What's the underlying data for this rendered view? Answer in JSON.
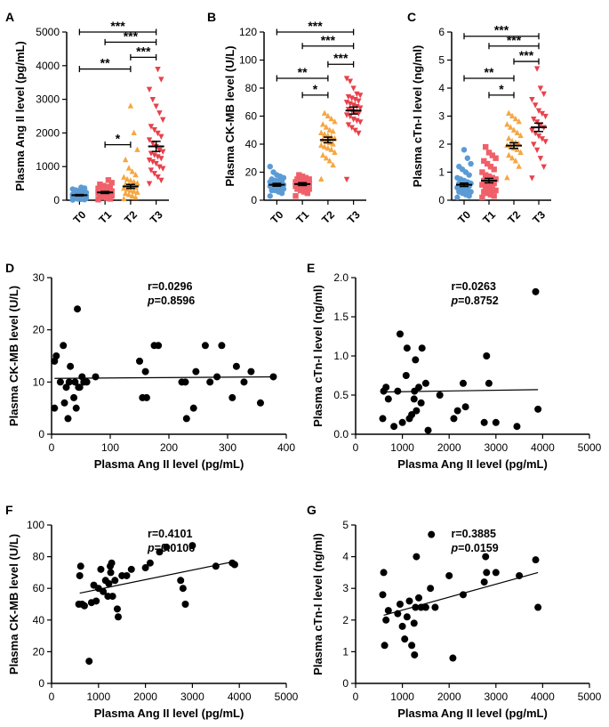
{
  "chart_data": [
    {
      "panel": "A",
      "type": "scatter",
      "ylabel": "Plasma Ang II level (pg/mL)",
      "ylim": [
        0,
        5000
      ],
      "yticks": [
        0,
        1000,
        2000,
        3000,
        4000,
        5000
      ],
      "categories": [
        "T0",
        "T1",
        "T2",
        "T3"
      ],
      "colors": [
        "#5b9bd5",
        "#f0606a",
        "#f5a742",
        "#e8414b"
      ],
      "markers": [
        "circle",
        "square",
        "triangle-up",
        "triangle-down"
      ],
      "means": [
        150,
        230,
        410,
        1600
      ],
      "sems": [
        20,
        30,
        60,
        150
      ],
      "groups": [
        [
          10,
          20,
          30,
          40,
          50,
          60,
          70,
          80,
          90,
          100,
          100,
          110,
          120,
          130,
          140,
          150,
          150,
          160,
          170,
          180,
          190,
          200,
          210,
          230,
          250,
          270,
          300,
          330,
          360,
          380
        ],
        [
          20,
          40,
          70,
          90,
          110,
          130,
          150,
          160,
          180,
          200,
          210,
          220,
          240,
          250,
          270,
          290,
          310,
          330,
          350,
          380,
          400,
          430,
          470,
          520,
          600
        ],
        [
          40,
          80,
          120,
          160,
          200,
          230,
          260,
          290,
          320,
          350,
          380,
          410,
          440,
          470,
          500,
          540,
          580,
          620,
          680,
          750,
          850,
          950,
          1200,
          1500,
          2000,
          2800
        ],
        [
          500,
          600,
          700,
          800,
          900,
          950,
          1000,
          1100,
          1150,
          1200,
          1250,
          1300,
          1350,
          1400,
          1450,
          1500,
          1600,
          1700,
          1800,
          1900,
          2000,
          2100,
          2200,
          2400,
          2600,
          2800,
          3000,
          3300,
          3600,
          3900
        ]
      ],
      "significance": [
        {
          "from": 0,
          "to": 3,
          "label": "***",
          "y": 5000
        },
        {
          "from": 1,
          "to": 3,
          "label": "***",
          "y": 4700
        },
        {
          "from": 2,
          "to": 3,
          "label": "***",
          "y": 4250
        },
        {
          "from": 0,
          "to": 2,
          "label": "**",
          "y": 3900
        },
        {
          "from": 1,
          "to": 2,
          "label": "*",
          "y": 1650
        }
      ]
    },
    {
      "panel": "B",
      "type": "scatter",
      "ylabel": "Plasma CK-MB level (U/L)",
      "ylim": [
        0,
        120
      ],
      "yticks": [
        0,
        20,
        40,
        60,
        80,
        100,
        120
      ],
      "categories": [
        "T0",
        "T1",
        "T2",
        "T3"
      ],
      "colors": [
        "#5b9bd5",
        "#f0606a",
        "#f5a742",
        "#e8414b"
      ],
      "markers": [
        "circle",
        "square",
        "triangle-up",
        "triangle-down"
      ],
      "means": [
        11,
        11.5,
        43,
        64
      ],
      "sems": [
        1,
        1,
        2,
        2.5
      ],
      "groups": [
        [
          3,
          5,
          6,
          7,
          7,
          8,
          8,
          9,
          9,
          10,
          10,
          10,
          11,
          11,
          11,
          12,
          12,
          12,
          13,
          13,
          14,
          14,
          15,
          16,
          17,
          18,
          20,
          24
        ],
        [
          3,
          5,
          6,
          7,
          8,
          8,
          9,
          9,
          10,
          10,
          10,
          11,
          11,
          11,
          12,
          12,
          12,
          13,
          13,
          13,
          14,
          14,
          15,
          15,
          16,
          17,
          18
        ],
        [
          15,
          25,
          28,
          30,
          32,
          34,
          36,
          37,
          38,
          39,
          40,
          41,
          42,
          43,
          44,
          45,
          46,
          47,
          48,
          49,
          50,
          52,
          54,
          56,
          58,
          60,
          62
        ],
        [
          15,
          48,
          50,
          52,
          54,
          56,
          57,
          58,
          60,
          61,
          62,
          63,
          64,
          65,
          66,
          67,
          68,
          69,
          70,
          71,
          72,
          73,
          74,
          75,
          76,
          80,
          85,
          87
        ]
      ],
      "significance": [
        {
          "from": 0,
          "to": 3,
          "label": "***",
          "y": 120
        },
        {
          "from": 1,
          "to": 3,
          "label": "***",
          "y": 110
        },
        {
          "from": 2,
          "to": 3,
          "label": "***",
          "y": 97
        },
        {
          "from": 0,
          "to": 2,
          "label": "**",
          "y": 87
        },
        {
          "from": 1,
          "to": 2,
          "label": "*",
          "y": 75
        }
      ]
    },
    {
      "panel": "C",
      "type": "scatter",
      "ylabel": "Plasma cTn-I level (ng/ml)",
      "ylim": [
        0,
        6
      ],
      "yticks": [
        0,
        1,
        2,
        3,
        4,
        5,
        6
      ],
      "categories": [
        "T0",
        "T1",
        "T2",
        "T3"
      ],
      "colors": [
        "#5b9bd5",
        "#f0606a",
        "#f5a742",
        "#e8414b"
      ],
      "markers": [
        "circle",
        "square",
        "triangle-up",
        "triangle-down"
      ],
      "means": [
        0.55,
        0.7,
        1.95,
        2.6
      ],
      "sems": [
        0.06,
        0.08,
        0.1,
        0.15
      ],
      "groups": [
        [
          0.1,
          0.15,
          0.2,
          0.25,
          0.3,
          0.3,
          0.35,
          0.4,
          0.4,
          0.45,
          0.5,
          0.5,
          0.55,
          0.6,
          0.6,
          0.65,
          0.7,
          0.75,
          0.8,
          0.9,
          1.0,
          1.1,
          1.2,
          1.3,
          1.5,
          1.8
        ],
        [
          0.1,
          0.15,
          0.2,
          0.25,
          0.3,
          0.35,
          0.4,
          0.45,
          0.5,
          0.55,
          0.6,
          0.6,
          0.65,
          0.7,
          0.75,
          0.8,
          0.85,
          0.9,
          1.0,
          1.1,
          1.2,
          1.3,
          1.4,
          1.5,
          1.6,
          1.7,
          1.9
        ],
        [
          0.8,
          1.2,
          1.4,
          1.5,
          1.6,
          1.7,
          1.8,
          1.85,
          1.9,
          1.95,
          2.0,
          2.05,
          2.1,
          2.2,
          2.3,
          2.4,
          2.5,
          2.6,
          2.7,
          2.8,
          2.9,
          3.0,
          3.1
        ],
        [
          0.8,
          1.2,
          1.5,
          1.8,
          2.0,
          2.1,
          2.2,
          2.3,
          2.4,
          2.5,
          2.6,
          2.7,
          2.8,
          2.9,
          3.0,
          3.1,
          3.2,
          3.4,
          3.6,
          3.8,
          4.0,
          4.7
        ]
      ],
      "significance": [
        {
          "from": 0,
          "to": 3,
          "label": "***",
          "y": 5.85
        },
        {
          "from": 1,
          "to": 3,
          "label": "***",
          "y": 5.5
        },
        {
          "from": 2,
          "to": 3,
          "label": "***",
          "y": 4.95
        },
        {
          "from": 0,
          "to": 2,
          "label": "**",
          "y": 4.35
        },
        {
          "from": 1,
          "to": 2,
          "label": "*",
          "y": 3.75
        }
      ]
    },
    {
      "panel": "D",
      "type": "scatter",
      "xlabel": "Plasma Ang II level (pg/mL)",
      "ylabel": "Plasma CK-MB level (U/L)",
      "xlim": [
        0,
        400
      ],
      "xticks": [
        0,
        100,
        200,
        300,
        400
      ],
      "ylim": [
        0,
        30
      ],
      "yticks": [
        0,
        10,
        20,
        30
      ],
      "stat_r": "r=0.0296",
      "stat_p_prefix": "p",
      "stat_p_value": "=0.8596",
      "fit": {
        "x": [
          5,
          380
        ],
        "y": [
          10.7,
          11.0
        ]
      },
      "points": [
        [
          5,
          14
        ],
        [
          5,
          5
        ],
        [
          8,
          15
        ],
        [
          15,
          10
        ],
        [
          20,
          17
        ],
        [
          22,
          6
        ],
        [
          25,
          9
        ],
        [
          28,
          3
        ],
        [
          30,
          10
        ],
        [
          32,
          13
        ],
        [
          38,
          7
        ],
        [
          40,
          10
        ],
        [
          42,
          5
        ],
        [
          44,
          24
        ],
        [
          46,
          9
        ],
        [
          48,
          9
        ],
        [
          52,
          11
        ],
        [
          55,
          10
        ],
        [
          60,
          10
        ],
        [
          75,
          11
        ],
        [
          150,
          14
        ],
        [
          155,
          7
        ],
        [
          160,
          12
        ],
        [
          162,
          7
        ],
        [
          175,
          17
        ],
        [
          182,
          17
        ],
        [
          222,
          10
        ],
        [
          228,
          10
        ],
        [
          230,
          3
        ],
        [
          242,
          5
        ],
        [
          246,
          12
        ],
        [
          262,
          17
        ],
        [
          270,
          10
        ],
        [
          282,
          11
        ],
        [
          290,
          17
        ],
        [
          308,
          7
        ],
        [
          315,
          13
        ],
        [
          328,
          10
        ],
        [
          340,
          12
        ],
        [
          356,
          6
        ],
        [
          378,
          11
        ]
      ]
    },
    {
      "panel": "E",
      "type": "scatter",
      "xlabel": "Plasma Ang II level (pg/mL)",
      "ylabel": "Plasma cTn-I level (ng/ml)",
      "xlim": [
        0,
        5000
      ],
      "xticks": [
        0,
        1000,
        2000,
        3000,
        4000,
        5000
      ],
      "ylim": [
        0,
        2.0
      ],
      "yticks": [
        0,
        0.5,
        1.0,
        1.5,
        2.0
      ],
      "stat_r": "r=0.0263",
      "stat_p_prefix": "p",
      "stat_p_value": "=0.8752",
      "fit": {
        "x": [
          600,
          3900
        ],
        "y": [
          0.54,
          0.57
        ]
      },
      "points": [
        [
          580,
          0.2
        ],
        [
          600,
          0.55
        ],
        [
          650,
          0.6
        ],
        [
          700,
          0.45
        ],
        [
          820,
          0.1
        ],
        [
          900,
          0.55
        ],
        [
          950,
          1.28
        ],
        [
          1000,
          0.15
        ],
        [
          1080,
          0.75
        ],
        [
          1100,
          1.1
        ],
        [
          1150,
          0.2
        ],
        [
          1200,
          0.25
        ],
        [
          1250,
          0.45
        ],
        [
          1260,
          0.55
        ],
        [
          1280,
          0.95
        ],
        [
          1300,
          0.3
        ],
        [
          1350,
          0.6
        ],
        [
          1400,
          0.4
        ],
        [
          1420,
          1.1
        ],
        [
          1500,
          0.65
        ],
        [
          1550,
          0.05
        ],
        [
          1800,
          0.5
        ],
        [
          2100,
          0.2
        ],
        [
          2180,
          0.3
        ],
        [
          2300,
          0.65
        ],
        [
          2350,
          0.35
        ],
        [
          2750,
          0.15
        ],
        [
          2800,
          1.0
        ],
        [
          2850,
          0.65
        ],
        [
          3000,
          0.15
        ],
        [
          3450,
          0.1
        ],
        [
          3850,
          1.82
        ],
        [
          3900,
          0.32
        ]
      ]
    },
    {
      "panel": "F",
      "type": "scatter",
      "xlabel": "Plasma Ang II level (pg/mL)",
      "ylabel": "Plasma CK-MB level (U/L)",
      "xlim": [
        0,
        5000
      ],
      "xticks": [
        0,
        1000,
        2000,
        3000,
        4000,
        5000
      ],
      "ylim": [
        0,
        100
      ],
      "yticks": [
        0,
        20,
        40,
        60,
        80,
        100
      ],
      "stat_r": "r=0.4101",
      "stat_p_prefix": "p",
      "stat_p_value": "=0.0106",
      "fit": {
        "x": [
          600,
          3900
        ],
        "y": [
          57,
          77
        ]
      },
      "points": [
        [
          580,
          50
        ],
        [
          600,
          68
        ],
        [
          620,
          74
        ],
        [
          650,
          50
        ],
        [
          700,
          49
        ],
        [
          800,
          14
        ],
        [
          850,
          51
        ],
        [
          900,
          62
        ],
        [
          950,
          52
        ],
        [
          1000,
          60
        ],
        [
          1050,
          72
        ],
        [
          1100,
          58
        ],
        [
          1150,
          65
        ],
        [
          1200,
          55
        ],
        [
          1220,
          63
        ],
        [
          1250,
          74
        ],
        [
          1260,
          70
        ],
        [
          1280,
          76
        ],
        [
          1300,
          55
        ],
        [
          1350,
          65
        ],
        [
          1400,
          47
        ],
        [
          1420,
          42
        ],
        [
          1500,
          68
        ],
        [
          1600,
          68
        ],
        [
          1700,
          72
        ],
        [
          2000,
          73
        ],
        [
          2100,
          76
        ],
        [
          2300,
          83
        ],
        [
          2450,
          86
        ],
        [
          2750,
          65
        ],
        [
          2800,
          60
        ],
        [
          2850,
          50
        ],
        [
          3000,
          87
        ],
        [
          3500,
          74
        ],
        [
          3850,
          76
        ],
        [
          3900,
          75
        ]
      ]
    },
    {
      "panel": "G",
      "type": "scatter",
      "xlabel": "Plasma Ang II level (pg/mL)",
      "ylabel": "Plasma cTn-I level (ng/ml)",
      "xlim": [
        0,
        5000
      ],
      "xticks": [
        0,
        1000,
        2000,
        3000,
        4000,
        5000
      ],
      "ylim": [
        0,
        5
      ],
      "yticks": [
        0,
        1,
        2,
        3,
        4,
        5
      ],
      "stat_r": "r=0.3885",
      "stat_p_prefix": "p",
      "stat_p_value": "=0.0159",
      "fit": {
        "x": [
          600,
          3900
        ],
        "y": [
          2.15,
          3.5
        ]
      },
      "points": [
        [
          580,
          2.8
        ],
        [
          600,
          3.5
        ],
        [
          620,
          1.2
        ],
        [
          650,
          2.0
        ],
        [
          700,
          2.3
        ],
        [
          900,
          2.2
        ],
        [
          950,
          2.5
        ],
        [
          1000,
          1.8
        ],
        [
          1050,
          1.4
        ],
        [
          1100,
          2.1
        ],
        [
          1150,
          2.6
        ],
        [
          1200,
          1.2
        ],
        [
          1250,
          1.9
        ],
        [
          1260,
          0.9
        ],
        [
          1280,
          2.4
        ],
        [
          1300,
          4.0
        ],
        [
          1350,
          2.7
        ],
        [
          1400,
          2.4
        ],
        [
          1500,
          2.4
        ],
        [
          1600,
          3.0
        ],
        [
          1620,
          4.7
        ],
        [
          1700,
          2.4
        ],
        [
          2000,
          3.4
        ],
        [
          2080,
          0.8
        ],
        [
          2300,
          2.8
        ],
        [
          2750,
          3.2
        ],
        [
          2780,
          4.0
        ],
        [
          2800,
          3.5
        ],
        [
          3000,
          3.5
        ],
        [
          3500,
          3.4
        ],
        [
          3850,
          3.9
        ],
        [
          3900,
          2.4
        ]
      ]
    }
  ]
}
